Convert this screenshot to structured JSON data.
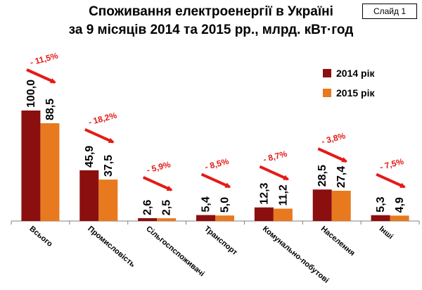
{
  "title_line1": "Споживання електроенергії в Україні",
  "title_line2": "за 9 місяців 2014 та 2015 рр., млрд. кВт·год",
  "slide_label": "Слайд 1",
  "chart_data": {
    "type": "bar",
    "categories": [
      "Всього",
      "Промисловість",
      "Сільгоспспоживачі",
      "Транспорт",
      "Комунально-побутові",
      "Населення",
      "Інші"
    ],
    "series": [
      {
        "name": "2014 рік",
        "color": "#8B0F0F",
        "values": [
          100.0,
          45.9,
          2.6,
          5.4,
          12.3,
          28.5,
          5.3
        ],
        "labels": [
          "100,0",
          "45,9",
          "2,6",
          "5,4",
          "12,3",
          "28,5",
          "5,3"
        ]
      },
      {
        "name": "2015 рік",
        "color": "#E8791E",
        "values": [
          88.5,
          37.5,
          2.5,
          5.0,
          11.2,
          27.4,
          4.9
        ],
        "labels": [
          "88,5",
          "37,5",
          "2,5",
          "5,0",
          "11,2",
          "27,4",
          "4,9"
        ]
      }
    ],
    "change_labels": [
      "- 11,5%",
      "- 18,2%",
      "- 5,9%",
      "- 8,5%",
      "- 8,7%",
      "- 3,8%",
      "- 7,5%"
    ],
    "ylim": [
      0,
      100
    ],
    "legend_position": "right",
    "annotation_color": "#E41B17"
  }
}
